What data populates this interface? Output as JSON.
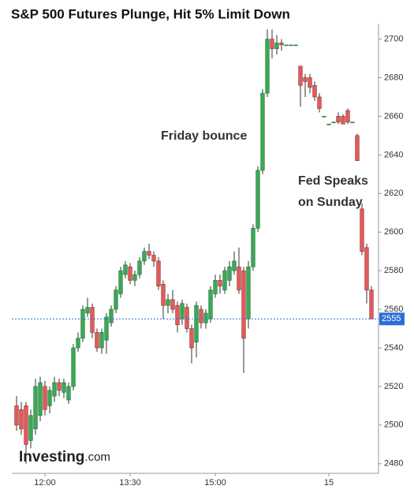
{
  "chart_data": {
    "type": "candlestick",
    "title": "S&P 500 Futures Plunge, Hit 5% Limit Down",
    "annotations": [
      {
        "text": "Friday bounce",
        "color": "#2ca84a"
      },
      {
        "text": "Fed Speaks",
        "color": "#e0262b"
      },
      {
        "text": "on Sunday",
        "color": "#e0262b"
      }
    ],
    "logo": {
      "brand": "Investing",
      "suffix": ".com"
    },
    "up_color": "#3aa856",
    "down_color": "#e25a5a",
    "last_price": 2555,
    "last_price_color": "#2a6ed8",
    "ylim": [
      2475,
      2708
    ],
    "yticks": [
      2480,
      2500,
      2520,
      2540,
      2560,
      2580,
      2600,
      2620,
      2640,
      2660,
      2680,
      2700
    ],
    "xlim": [
      -1,
      76.5
    ],
    "xticks": [
      {
        "value": 6,
        "label": "12:00"
      },
      {
        "value": 24,
        "label": "13:30"
      },
      {
        "value": 42,
        "label": "15:00"
      },
      {
        "value": 66,
        "label": "15"
      }
    ],
    "candles": [
      {
        "open": 2510,
        "high": 2515,
        "low": 2497,
        "close": 2500
      },
      {
        "open": 2508,
        "high": 2512,
        "low": 2495,
        "close": 2498
      },
      {
        "open": 2510,
        "high": 2512,
        "low": 2480,
        "close": 2490
      },
      {
        "open": 2492,
        "high": 2508,
        "low": 2488,
        "close": 2505
      },
      {
        "open": 2498,
        "high": 2524,
        "low": 2495,
        "close": 2520
      },
      {
        "open": 2505,
        "high": 2525,
        "low": 2502,
        "close": 2522
      },
      {
        "open": 2520,
        "high": 2523,
        "low": 2505,
        "close": 2508
      },
      {
        "open": 2510,
        "high": 2520,
        "low": 2506,
        "close": 2518
      },
      {
        "open": 2515,
        "high": 2525,
        "low": 2512,
        "close": 2522
      },
      {
        "open": 2522,
        "high": 2524,
        "low": 2515,
        "close": 2518
      },
      {
        "open": 2517,
        "high": 2524,
        "low": 2514,
        "close": 2522
      },
      {
        "open": 2513,
        "high": 2522,
        "low": 2511,
        "close": 2520
      },
      {
        "open": 2520,
        "high": 2542,
        "low": 2518,
        "close": 2540
      },
      {
        "open": 2540,
        "high": 2548,
        "low": 2538,
        "close": 2545
      },
      {
        "open": 2545,
        "high": 2562,
        "low": 2543,
        "close": 2560
      },
      {
        "open": 2558,
        "high": 2566,
        "low": 2556,
        "close": 2561
      },
      {
        "open": 2561,
        "high": 2563,
        "low": 2545,
        "close": 2548
      },
      {
        "open": 2548,
        "high": 2550,
        "low": 2538,
        "close": 2540
      },
      {
        "open": 2540,
        "high": 2550,
        "low": 2537,
        "close": 2548
      },
      {
        "open": 2544,
        "high": 2558,
        "low": 2537,
        "close": 2556
      },
      {
        "open": 2553,
        "high": 2562,
        "low": 2551,
        "close": 2560
      },
      {
        "open": 2560,
        "high": 2572,
        "low": 2558,
        "close": 2570
      },
      {
        "open": 2568,
        "high": 2582,
        "low": 2566,
        "close": 2580
      },
      {
        "open": 2578,
        "high": 2585,
        "low": 2576,
        "close": 2583
      },
      {
        "open": 2582,
        "high": 2584,
        "low": 2573,
        "close": 2575
      },
      {
        "open": 2575,
        "high": 2580,
        "low": 2572,
        "close": 2578
      },
      {
        "open": 2578,
        "high": 2587,
        "low": 2576,
        "close": 2585
      },
      {
        "open": 2585,
        "high": 2592,
        "low": 2583,
        "close": 2590
      },
      {
        "open": 2590,
        "high": 2594,
        "low": 2586,
        "close": 2588
      },
      {
        "open": 2588,
        "high": 2590,
        "low": 2582,
        "close": 2585
      },
      {
        "open": 2585,
        "high": 2587,
        "low": 2570,
        "close": 2572
      },
      {
        "open": 2573,
        "high": 2575,
        "low": 2555,
        "close": 2562
      },
      {
        "open": 2562,
        "high": 2568,
        "low": 2558,
        "close": 2565
      },
      {
        "open": 2565,
        "high": 2570,
        "low": 2558,
        "close": 2560
      },
      {
        "open": 2562,
        "high": 2564,
        "low": 2548,
        "close": 2552
      },
      {
        "open": 2555,
        "high": 2565,
        "low": 2552,
        "close": 2563
      },
      {
        "open": 2561,
        "high": 2563,
        "low": 2548,
        "close": 2550
      },
      {
        "open": 2550,
        "high": 2552,
        "low": 2532,
        "close": 2540
      },
      {
        "open": 2543,
        "high": 2564,
        "low": 2535,
        "close": 2562
      },
      {
        "open": 2560,
        "high": 2562,
        "low": 2550,
        "close": 2553
      },
      {
        "open": 2553,
        "high": 2560,
        "low": 2550,
        "close": 2558
      },
      {
        "open": 2555,
        "high": 2572,
        "low": 2553,
        "close": 2570
      },
      {
        "open": 2568,
        "high": 2578,
        "low": 2566,
        "close": 2575
      },
      {
        "open": 2575,
        "high": 2578,
        "low": 2568,
        "close": 2572
      },
      {
        "open": 2570,
        "high": 2582,
        "low": 2568,
        "close": 2580
      },
      {
        "open": 2575,
        "high": 2585,
        "low": 2572,
        "close": 2582
      },
      {
        "open": 2580,
        "high": 2590,
        "low": 2578,
        "close": 2585
      },
      {
        "open": 2582,
        "high": 2592,
        "low": 2568,
        "close": 2570
      },
      {
        "open": 2580,
        "high": 2582,
        "low": 2527,
        "close": 2545
      },
      {
        "open": 2555,
        "high": 2585,
        "low": 2550,
        "close": 2582
      },
      {
        "open": 2582,
        "high": 2604,
        "low": 2580,
        "close": 2602
      },
      {
        "open": 2602,
        "high": 2634,
        "low": 2600,
        "close": 2632
      },
      {
        "open": 2632,
        "high": 2674,
        "low": 2630,
        "close": 2672
      },
      {
        "open": 2672,
        "high": 2705,
        "low": 2670,
        "close": 2700
      },
      {
        "open": 2700,
        "high": 2705,
        "low": 2690,
        "close": 2695
      },
      {
        "open": 2695,
        "high": 2702,
        "low": 2692,
        "close": 2698
      },
      {
        "open": 2698,
        "high": 2700,
        "low": 2694,
        "close": 2697
      },
      {
        "open": 2697,
        "high": 2697,
        "low": 2697,
        "close": 2697
      },
      {
        "open": 2697,
        "high": 2697,
        "low": 2697,
        "close": 2697
      },
      {
        "open": 2697,
        "high": 2697,
        "low": 2697,
        "close": 2697
      },
      {
        "open": 2686,
        "high": 2686,
        "low": 2665,
        "close": 2676
      },
      {
        "open": 2680,
        "high": 2682,
        "low": 2670,
        "close": 2678
      },
      {
        "open": 2680,
        "high": 2682,
        "low": 2672,
        "close": 2675
      },
      {
        "open": 2676,
        "high": 2678,
        "low": 2668,
        "close": 2670
      },
      {
        "open": 2670,
        "high": 2672,
        "low": 2662,
        "close": 2664
      },
      {
        "open": 2660,
        "high": 2660,
        "low": 2660,
        "close": 2660
      },
      {
        "open": 2656,
        "high": 2656,
        "low": 2656,
        "close": 2656
      },
      {
        "open": 2657,
        "high": 2657,
        "low": 2657,
        "close": 2657
      },
      {
        "open": 2660,
        "high": 2662,
        "low": 2656,
        "close": 2657
      },
      {
        "open": 2660,
        "high": 2661,
        "low": 2656,
        "close": 2656
      },
      {
        "open": 2663,
        "high": 2664,
        "low": 2656,
        "close": 2657
      },
      {
        "open": 2657,
        "high": 2657,
        "low": 2657,
        "close": 2657
      },
      {
        "open": 2650,
        "high": 2651,
        "low": 2637,
        "close": 2637
      },
      {
        "open": 2612,
        "high": 2615,
        "low": 2588,
        "close": 2590
      },
      {
        "open": 2592,
        "high": 2594,
        "low": 2563,
        "close": 2570
      },
      {
        "open": 2570,
        "high": 2572,
        "low": 2555,
        "close": 2555
      }
    ]
  }
}
